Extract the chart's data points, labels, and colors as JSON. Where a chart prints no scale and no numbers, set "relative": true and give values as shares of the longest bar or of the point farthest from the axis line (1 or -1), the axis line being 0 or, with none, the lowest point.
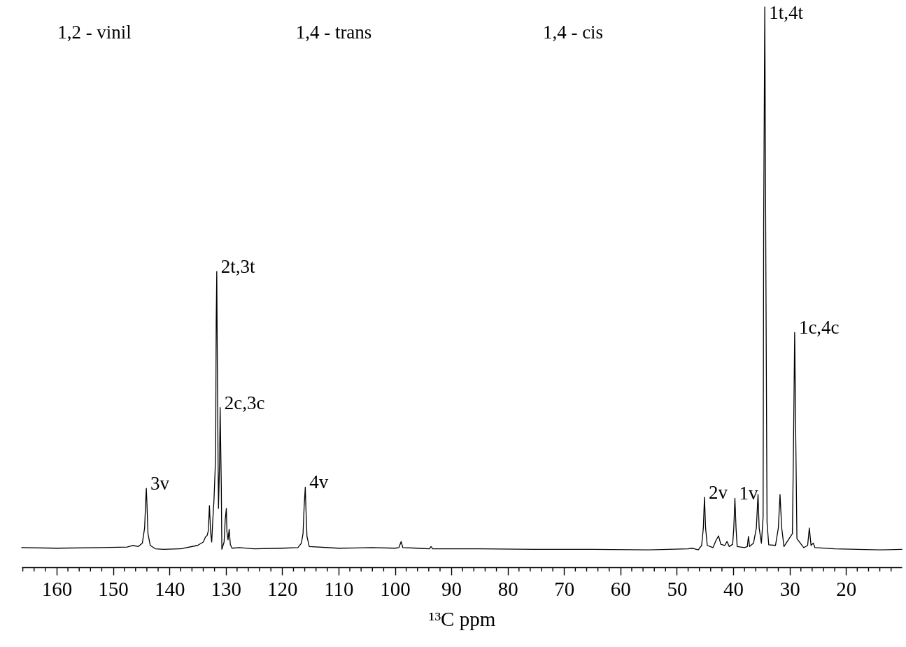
{
  "chart_data": {
    "type": "line",
    "relative": true,
    "line_style": "solid",
    "xlabel": "¹³C ppm",
    "xlim": [
      166.2,
      10.1
    ],
    "xticks": [
      {
        "value": 166,
        "label": null
      },
      {
        "value": 164,
        "label": null
      },
      {
        "value": 162,
        "label": null
      },
      160,
      {
        "value": 158,
        "label": null
      },
      {
        "value": 156,
        "label": null
      },
      {
        "value": 154,
        "label": null
      },
      {
        "value": 152,
        "label": null
      },
      150,
      {
        "value": 148,
        "label": null
      },
      {
        "value": 146,
        "label": null
      },
      {
        "value": 144,
        "label": null
      },
      {
        "value": 142,
        "label": null
      },
      140,
      {
        "value": 138,
        "label": null
      },
      {
        "value": 136,
        "label": null
      },
      {
        "value": 134,
        "label": null
      },
      {
        "value": 132,
        "label": null
      },
      130,
      {
        "value": 128,
        "label": null
      },
      {
        "value": 126,
        "label": null
      },
      {
        "value": 124,
        "label": null
      },
      {
        "value": 122,
        "label": null
      },
      120,
      {
        "value": 118,
        "label": null
      },
      {
        "value": 116,
        "label": null
      },
      {
        "value": 114,
        "label": null
      },
      {
        "value": 112,
        "label": null
      },
      110,
      {
        "value": 108,
        "label": null
      },
      {
        "value": 106,
        "label": null
      },
      {
        "value": 104,
        "label": null
      },
      {
        "value": 102,
        "label": null
      },
      100,
      {
        "value": 98,
        "label": null
      },
      {
        "value": 96,
        "label": null
      },
      {
        "value": 94,
        "label": null
      },
      {
        "value": 92,
        "label": null
      },
      90,
      {
        "value": 88,
        "label": null
      },
      {
        "value": 86,
        "label": null
      },
      {
        "value": 84,
        "label": null
      },
      {
        "value": 82,
        "label": null
      },
      80,
      {
        "value": 78,
        "label": null
      },
      {
        "value": 76,
        "label": null
      },
      {
        "value": 74,
        "label": null
      },
      {
        "value": 72,
        "label": null
      },
      70,
      {
        "value": 68,
        "label": null
      },
      {
        "value": 66,
        "label": null
      },
      {
        "value": 64,
        "label": null
      },
      {
        "value": 62,
        "label": null
      },
      60,
      {
        "value": 58,
        "label": null
      },
      {
        "value": 56,
        "label": null
      },
      {
        "value": 54,
        "label": null
      },
      {
        "value": 52,
        "label": null
      },
      50,
      {
        "value": 48,
        "label": null
      },
      {
        "value": 46,
        "label": null
      },
      {
        "value": 44,
        "label": null
      },
      {
        "value": 42,
        "label": null
      },
      40,
      {
        "value": 38,
        "label": null
      },
      {
        "value": 36,
        "label": null
      },
      {
        "value": 34,
        "label": null
      },
      {
        "value": 32,
        "label": null
      },
      30,
      {
        "value": 28,
        "label": null
      },
      {
        "value": 26,
        "label": null
      },
      {
        "value": 24,
        "label": null
      },
      {
        "value": 22,
        "label": null
      },
      20,
      {
        "value": 18,
        "label": null
      },
      {
        "value": 16,
        "label": null
      },
      {
        "value": 14,
        "label": null
      },
      {
        "value": 12,
        "label": null
      }
    ],
    "color": "#000000",
    "x": [
      166.2,
      160,
      152,
      147.5,
      146.5,
      145.5,
      144.8,
      144.4,
      144.2,
      144.1,
      144.0,
      143.8,
      143.4,
      142.5,
      141,
      138,
      135.0,
      134.0,
      133.6,
      133.3,
      133.1,
      132.9,
      132.7,
      132.5,
      132.3,
      132.1,
      131.8,
      131.7,
      131.6,
      131.5,
      131.3,
      131.1,
      131.0,
      130.8,
      130.7,
      130.3,
      130.1,
      129.9,
      129.8,
      129.6,
      129.4,
      129.2,
      128.9,
      127.6,
      125,
      120,
      117.2,
      116.6,
      116.3,
      116.1,
      115.9,
      115.8,
      115.6,
      115.2,
      110,
      104,
      100,
      99.3,
      98.9,
      98.6,
      96,
      93.9,
      93.6,
      93.3,
      85,
      75,
      65,
      55,
      48,
      47.2,
      46.2,
      45.6,
      45.3,
      45.1,
      44.9,
      44.6,
      43.6,
      43.0,
      42.6,
      42.2,
      41.5,
      41.1,
      40.7,
      40.1,
      39.9,
      39.7,
      39.5,
      39.3,
      38,
      37.5,
      37.3,
      37.1,
      36.4,
      35.9,
      35.6,
      35.4,
      35.0,
      34.7,
      34.6,
      34.4,
      34.2,
      34.0,
      33.7,
      32.5,
      32.0,
      31.7,
      31.4,
      31.0,
      29.5,
      29.3,
      29.1,
      28.9,
      28.7,
      27.5,
      26.8,
      26.5,
      26.2,
      25.8,
      25.5,
      22,
      18,
      14,
      10.1
    ],
    "values": [
      0.035,
      0.034,
      0.035,
      0.036,
      0.039,
      0.037,
      0.043,
      0.07,
      0.118,
      0.141,
      0.118,
      0.06,
      0.039,
      0.033,
      0.032,
      0.033,
      0.039,
      0.045,
      0.054,
      0.057,
      0.065,
      0.11,
      0.064,
      0.045,
      0.085,
      0.119,
      0.197,
      0.438,
      0.528,
      0.363,
      0.105,
      0.188,
      0.285,
      0.147,
      0.032,
      0.045,
      0.085,
      0.105,
      0.064,
      0.049,
      0.068,
      0.041,
      0.034,
      0.035,
      0.033,
      0.034,
      0.035,
      0.043,
      0.06,
      0.109,
      0.143,
      0.109,
      0.055,
      0.037,
      0.034,
      0.035,
      0.034,
      0.035,
      0.046,
      0.035,
      0.034,
      0.033,
      0.037,
      0.033,
      0.033,
      0.032,
      0.032,
      0.031,
      0.033,
      0.034,
      0.031,
      0.039,
      0.07,
      0.125,
      0.07,
      0.039,
      0.035,
      0.049,
      0.056,
      0.041,
      0.039,
      0.046,
      0.037,
      0.041,
      0.07,
      0.123,
      0.07,
      0.037,
      0.035,
      0.037,
      0.055,
      0.037,
      0.043,
      0.07,
      0.13,
      0.07,
      0.043,
      0.089,
      0.612,
      1.0,
      0.515,
      0.08,
      0.04,
      0.039,
      0.07,
      0.13,
      0.07,
      0.037,
      0.06,
      0.225,
      0.419,
      0.225,
      0.051,
      0.035,
      0.039,
      0.07,
      0.039,
      0.043,
      0.035,
      0.033,
      0.032,
      0.031,
      0.032
    ],
    "annotations": [
      "1,2 - vinil",
      "1,4 - trans",
      "1,4 - cis",
      {
        "text": "3v",
        "x": 144.1,
        "y": 0.141
      },
      {
        "text": "2t,3t",
        "x": 131.6,
        "y": 0.528
      },
      {
        "text": "2c,3c",
        "x": 131.0,
        "y": 0.285
      },
      {
        "text": "4v",
        "x": 115.9,
        "y": 0.143
      },
      {
        "text": "2v",
        "x": 45.1,
        "y": 0.125
      },
      {
        "text": "1v",
        "x": 39.7,
        "y": 0.123
      },
      {
        "text": "1t,4t",
        "x": 34.4,
        "y": 1.0
      },
      {
        "text": "1c,4c",
        "x": 29.1,
        "y": 0.419
      }
    ]
  }
}
